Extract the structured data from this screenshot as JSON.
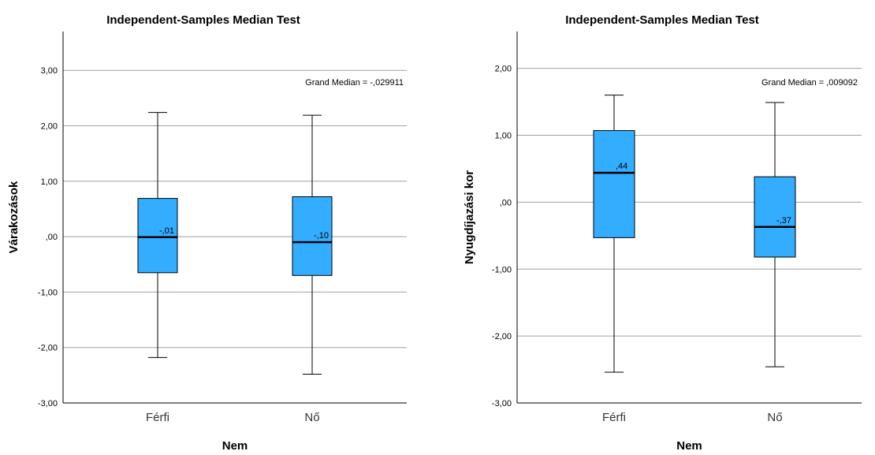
{
  "chart_data": [
    {
      "type": "boxplot",
      "title": "Independent-Samples Median Test",
      "xlabel": "Nem",
      "ylabel": "Várakozások",
      "ylim": [
        -3,
        3.7
      ],
      "y_ticks": [
        3,
        2,
        1,
        0,
        -1,
        -2,
        -3
      ],
      "y_tick_labels": [
        "3,00",
        "2,00",
        "1,00",
        ",00",
        "-1,00",
        "-2,00",
        "-3,00"
      ],
      "grid": true,
      "annotation": "Grand Median = -,029911",
      "box_color": "#33adff",
      "categories": [
        "Férfi",
        "Nő"
      ],
      "boxes": [
        {
          "category": "Férfi",
          "whisker_low": -2.18,
          "q1": -0.65,
          "median": -0.01,
          "q3": 0.69,
          "whisker_high": 2.24,
          "median_label": "-,01"
        },
        {
          "category": "Nő",
          "whisker_low": -2.48,
          "q1": -0.7,
          "median": -0.1,
          "q3": 0.72,
          "whisker_high": 2.19,
          "median_label": "-,10"
        }
      ]
    },
    {
      "type": "boxplot",
      "title": "Independent-Samples Median Test",
      "xlabel": "Nem",
      "ylabel": "Nyugdíjazási kor",
      "ylim": [
        -3,
        2.55
      ],
      "y_ticks": [
        2,
        1,
        0,
        -1,
        -2,
        -3
      ],
      "y_tick_labels": [
        "2,00",
        "1,00",
        ",00",
        "-1,00",
        "-2,00",
        "-3,00"
      ],
      "grid": true,
      "annotation": "Grand Median = ,009092",
      "box_color": "#33adff",
      "categories": [
        "Férfi",
        "Nő"
      ],
      "boxes": [
        {
          "category": "Férfi",
          "whisker_low": -2.54,
          "q1": -0.53,
          "median": 0.44,
          "q3": 1.07,
          "whisker_high": 1.6,
          "median_label": ",44"
        },
        {
          "category": "Nő",
          "whisker_low": -2.46,
          "q1": -0.82,
          "median": -0.37,
          "q3": 0.38,
          "whisker_high": 1.49,
          "median_label": "-,37"
        }
      ]
    }
  ]
}
